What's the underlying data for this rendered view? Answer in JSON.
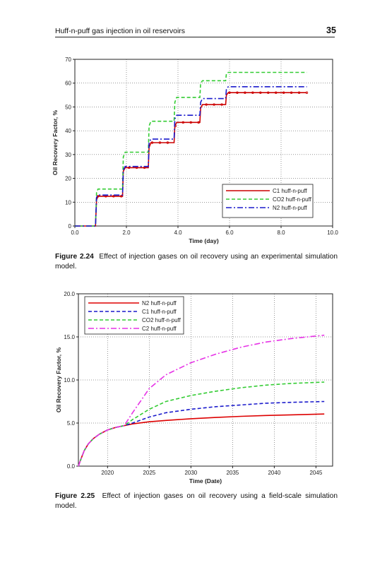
{
  "header": {
    "running_title": "Huff-n-puff gas injection in oil reservoirs",
    "page_number": "35"
  },
  "figure_1": {
    "caption_label": "Figure 2.24",
    "caption_text": "Effect of injection gases on oil recovery using an experimental simulation model."
  },
  "figure_2": {
    "caption_label": "Figure 2.25",
    "caption_text": "Effect of injection gases on oil recovery using a field-scale simulation model."
  },
  "chart_data": [
    {
      "type": "line",
      "xlabel": "Time (day)",
      "ylabel": "Oil Recovery Factor, %",
      "xlim": [
        0,
        10
      ],
      "ylim": [
        0,
        70
      ],
      "xticks": [
        "0.0",
        "2.0",
        "4.0",
        "6.0",
        "8.0",
        "10.0"
      ],
      "yticks": [
        "0",
        "10",
        "20",
        "30",
        "40",
        "50",
        "60",
        "70"
      ],
      "grid": true,
      "legend_position": "bottom-right",
      "series": [
        {
          "name": "C1 huff-n-puff",
          "color": "#cc0000",
          "dash": "solid",
          "marker": "o",
          "x": [
            0,
            0.8,
            0.84,
            0.9,
            1.85,
            1.88,
            1.95,
            2.85,
            2.88,
            2.95,
            3.85,
            3.88,
            3.95,
            4.85,
            4.88,
            4.95,
            5.85,
            5.88,
            5.95,
            9.0
          ],
          "y": [
            0,
            0,
            11,
            12.5,
            12.5,
            23,
            24.5,
            24.5,
            33,
            35,
            35,
            42,
            43.5,
            43.5,
            49.5,
            51,
            51,
            55,
            56,
            56
          ]
        },
        {
          "name": "CO2 huff-n-puff",
          "color": "#33cc33",
          "dash": "dashed",
          "marker": "none",
          "x": [
            0,
            0.8,
            0.84,
            0.9,
            1.85,
            1.88,
            1.95,
            2.85,
            2.88,
            2.95,
            3.85,
            3.88,
            3.95,
            4.85,
            4.88,
            4.95,
            5.85,
            5.88,
            5.95,
            9.0
          ],
          "y": [
            0,
            0,
            14,
            15.5,
            15.5,
            29,
            31,
            31,
            42,
            44,
            44,
            52,
            54,
            54,
            60,
            61,
            61,
            64,
            64.5,
            64.5
          ]
        },
        {
          "name": "N2 huff-n-puff",
          "color": "#1a1acc",
          "dash": "dashdot",
          "marker": "none",
          "x": [
            0,
            0.8,
            0.84,
            0.9,
            1.85,
            1.88,
            1.95,
            2.85,
            2.88,
            2.95,
            3.85,
            3.88,
            3.95,
            4.85,
            4.88,
            4.95,
            5.85,
            5.88,
            5.95,
            9.0
          ],
          "y": [
            0,
            0,
            12,
            13,
            13,
            23.5,
            25,
            25,
            35,
            36.5,
            36.5,
            45,
            46.5,
            46.5,
            52,
            53.5,
            53.5,
            57.5,
            58.5,
            58.5
          ]
        }
      ]
    },
    {
      "type": "line",
      "xlabel": "Time (Date)",
      "ylabel": "Oil Recovery Factor, %",
      "xlim": [
        2016.5,
        2047
      ],
      "ylim": [
        0,
        20
      ],
      "xticks": [
        "2020",
        "2025",
        "2030",
        "2035",
        "2040",
        "2045"
      ],
      "yticks": [
        "0.0",
        "5.0",
        "10.0",
        "15.0",
        "20.0"
      ],
      "grid": true,
      "legend_position": "top-left",
      "series": [
        {
          "name": "N2 huff-n-puff",
          "color": "#dd0000",
          "dash": "solid",
          "x": [
            2016.5,
            2016.8,
            2017.2,
            2017.7,
            2018.3,
            2019,
            2020,
            2021,
            2022,
            2023,
            2025,
            2027,
            2030,
            2033,
            2036,
            2039,
            2042,
            2046
          ],
          "y": [
            0,
            0.8,
            1.8,
            2.6,
            3.2,
            3.7,
            4.2,
            4.5,
            4.7,
            4.9,
            5.15,
            5.3,
            5.5,
            5.65,
            5.78,
            5.88,
            5.95,
            6.05
          ]
        },
        {
          "name": "C1 huff-n-puff",
          "color": "#1a1acc",
          "dash": "dashed",
          "x": [
            2016.5,
            2016.8,
            2017.2,
            2017.7,
            2018.3,
            2019,
            2020,
            2021,
            2022,
            2023,
            2025,
            2027,
            2030,
            2033,
            2036,
            2039,
            2042,
            2046
          ],
          "y": [
            0,
            0.8,
            1.8,
            2.6,
            3.2,
            3.7,
            4.2,
            4.5,
            4.7,
            5.0,
            5.7,
            6.2,
            6.6,
            6.9,
            7.1,
            7.3,
            7.4,
            7.5
          ]
        },
        {
          "name": "CO2 huff-n-puff",
          "color": "#33cc33",
          "dash": "dashed",
          "x": [
            2016.5,
            2016.8,
            2017.2,
            2017.7,
            2018.3,
            2019,
            2020,
            2021,
            2022,
            2023,
            2025,
            2027,
            2030,
            2033,
            2036,
            2039,
            2042,
            2046
          ],
          "y": [
            0,
            0.8,
            1.8,
            2.6,
            3.2,
            3.7,
            4.2,
            4.5,
            4.7,
            5.4,
            6.6,
            7.5,
            8.2,
            8.7,
            9.1,
            9.4,
            9.6,
            9.75
          ]
        },
        {
          "name": "C2 huff-n-puff",
          "color": "#e633e6",
          "dash": "dashdot",
          "x": [
            2016.5,
            2016.8,
            2017.2,
            2017.7,
            2018.3,
            2019,
            2020,
            2021,
            2022,
            2023,
            2025,
            2027,
            2030,
            2033,
            2036,
            2039,
            2042,
            2046
          ],
          "y": [
            0,
            0.8,
            1.8,
            2.6,
            3.2,
            3.7,
            4.2,
            4.5,
            4.7,
            6.2,
            9.0,
            10.6,
            12.0,
            13.0,
            13.8,
            14.4,
            14.8,
            15.2
          ]
        }
      ]
    }
  ]
}
